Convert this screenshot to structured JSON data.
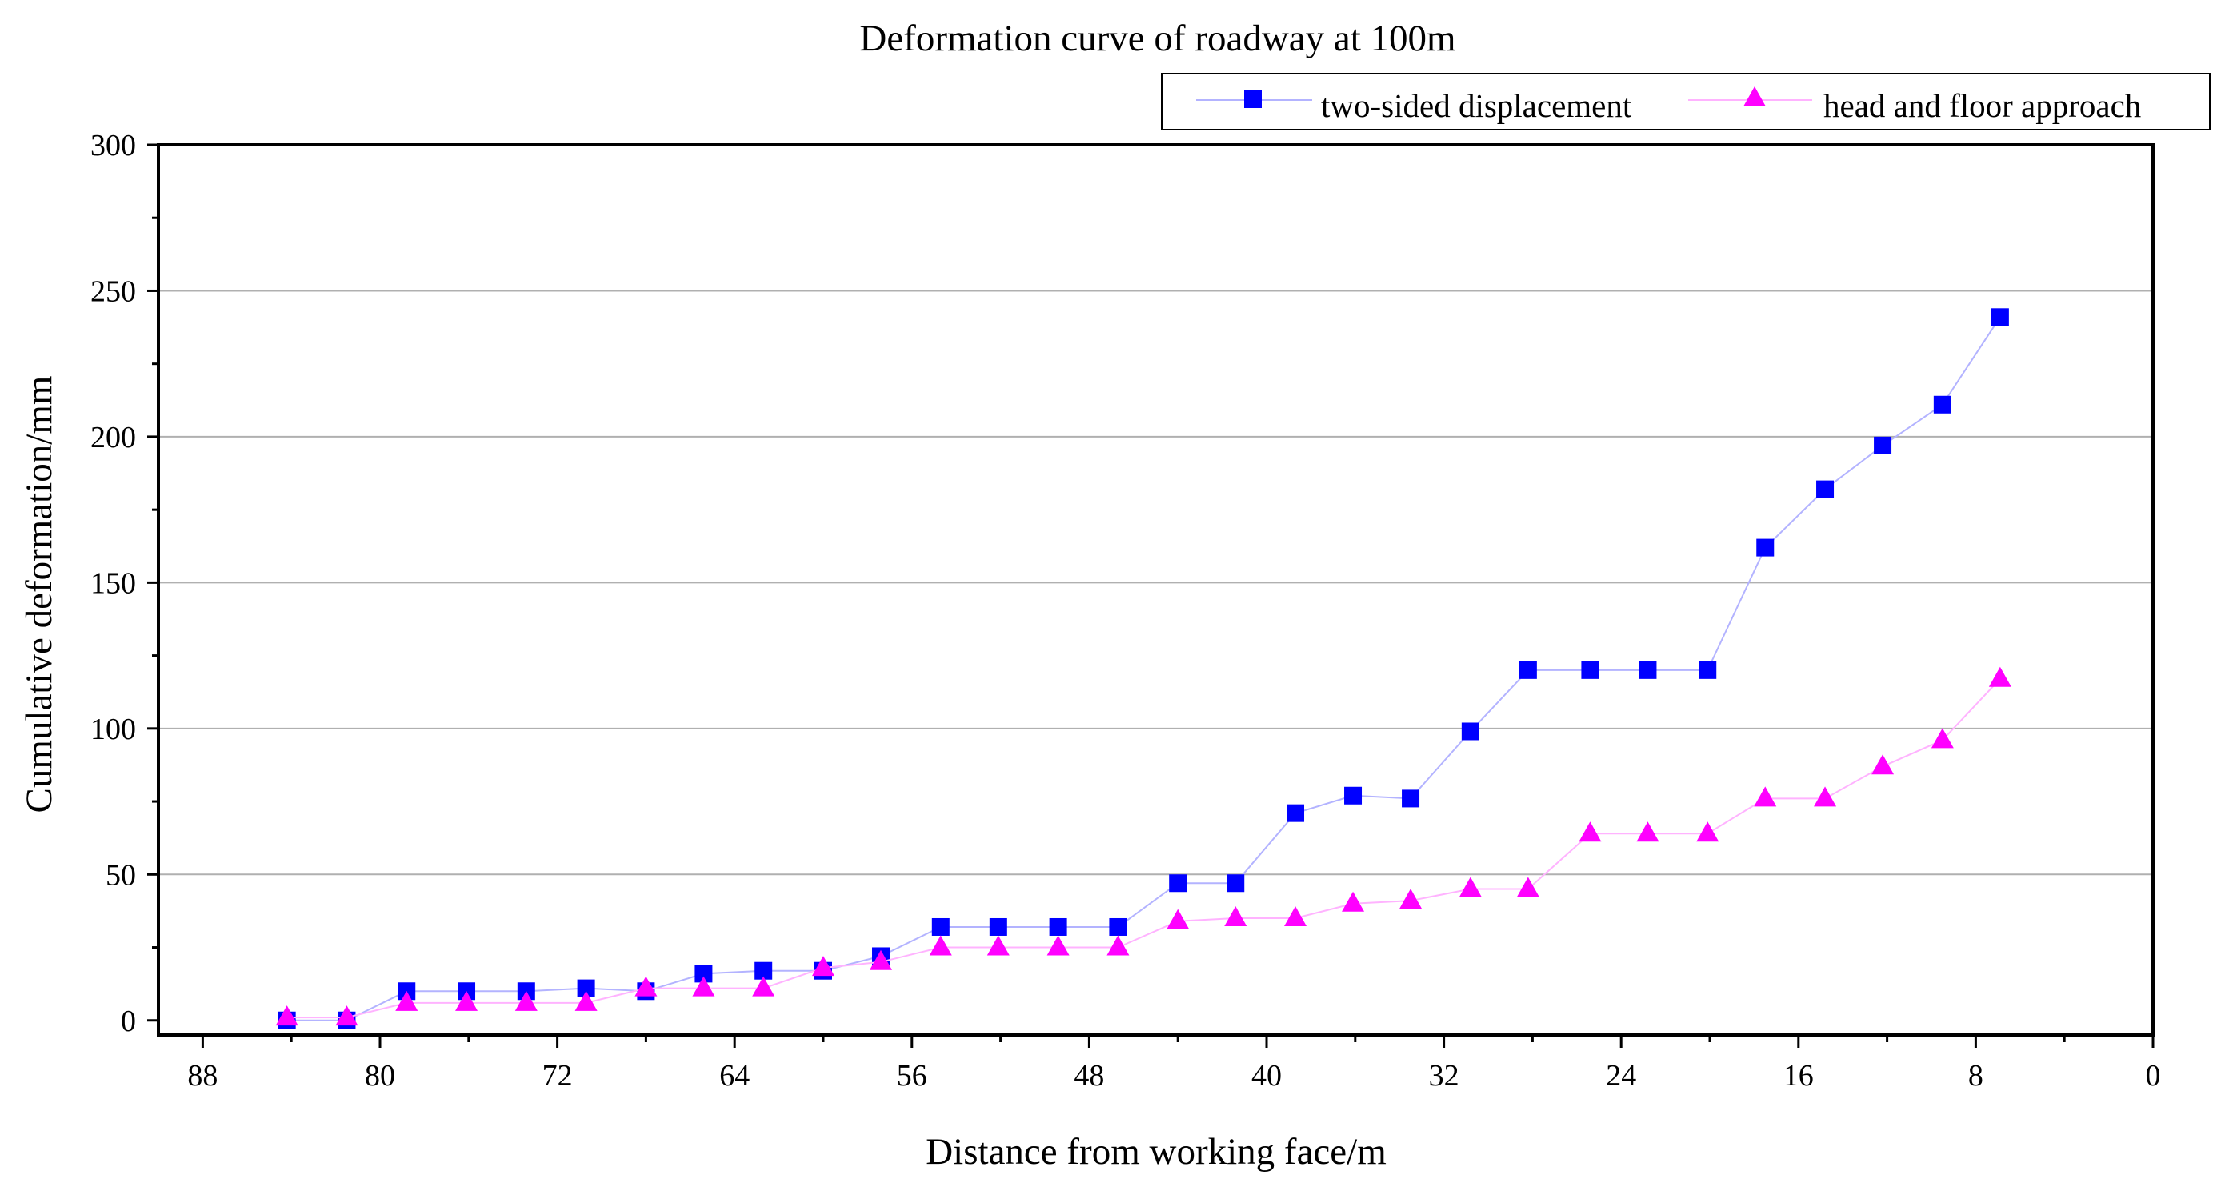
{
  "chart_data": {
    "type": "line",
    "title": "Deformation curve of roadway at 100m",
    "xlabel": "Distance from working face/m",
    "ylabel": "Cumulative deformation/mm",
    "xlim": [
      90,
      0
    ],
    "ylim": [
      -5,
      300
    ],
    "x_reversed": true,
    "xticks": [
      88,
      80,
      72,
      64,
      56,
      48,
      40,
      32,
      24,
      16,
      8,
      0
    ],
    "yticks": [
      0,
      50,
      100,
      150,
      200,
      250,
      300
    ],
    "grid": "horizontal",
    "legend_position": "top-right",
    "x": [
      84.2,
      81.5,
      78.8,
      76.1,
      73.4,
      70.7,
      68.0,
      65.4,
      62.7,
      60.0,
      57.4,
      54.7,
      52.1,
      49.4,
      46.7,
      44.0,
      41.4,
      38.7,
      36.1,
      33.5,
      30.8,
      28.2,
      25.4,
      22.8,
      20.1,
      17.5,
      14.8,
      12.2,
      9.5,
      6.9
    ],
    "series": [
      {
        "name": "two-sided displacement",
        "color": "#0000ff",
        "marker": "square",
        "line_color": "#b3b3ff",
        "values": [
          0,
          0,
          10,
          10,
          10,
          11,
          10,
          16,
          17,
          17,
          22,
          32,
          32,
          32,
          32,
          47,
          47,
          71,
          77,
          76,
          99,
          120,
          120,
          120,
          120,
          162,
          182,
          197,
          211,
          241
        ]
      },
      {
        "name": "head and floor approach",
        "color": "#ff00ff",
        "marker": "triangle",
        "line_color": "#ffb3ff",
        "values": [
          1,
          1,
          6,
          6,
          6,
          6,
          11,
          11,
          11,
          18,
          20,
          25,
          25,
          25,
          25,
          34,
          35,
          35,
          40,
          41,
          45,
          45,
          64,
          64,
          64,
          76,
          76,
          87,
          96,
          117
        ]
      }
    ]
  }
}
